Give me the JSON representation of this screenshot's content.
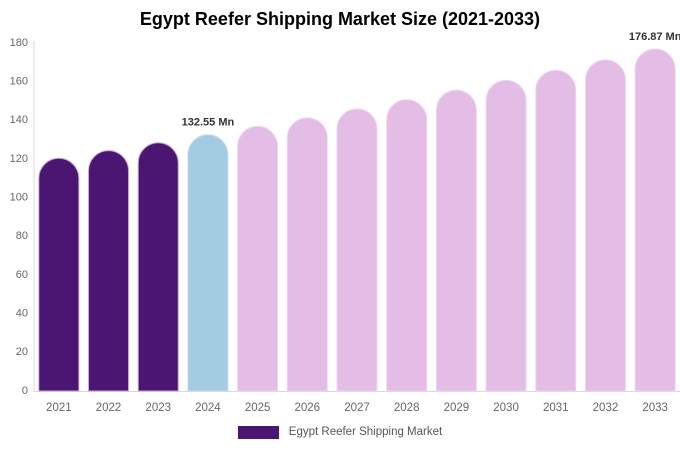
{
  "chart_data": {
    "type": "bar",
    "title": "Egypt Reefer Shipping Market Size (2021-2033)",
    "categories": [
      "2021",
      "2022",
      "2023",
      "2024",
      "2025",
      "2026",
      "2027",
      "2028",
      "2029",
      "2030",
      "2031",
      "2032",
      "2033"
    ],
    "values": [
      120.4,
      124.3,
      128.4,
      132.55,
      136.9,
      141.3,
      145.9,
      150.7,
      155.6,
      160.7,
      165.9,
      171.3,
      176.87
    ],
    "unit": "Mn",
    "xlabel": "",
    "ylabel": "",
    "ylim": [
      0,
      180
    ],
    "yticks": [
      0,
      20,
      40,
      60,
      80,
      100,
      120,
      140,
      160,
      180
    ],
    "grid": false,
    "legend": {
      "position": "bottom",
      "label": "Egypt Reefer Shipping Market",
      "swatch_color": "#4B1572"
    },
    "annotations": [
      {
        "index": 3,
        "text": "132.55 Mn"
      },
      {
        "index": 12,
        "text": "176.87 Mn"
      }
    ],
    "bar_colors": {
      "historical": "#4B1572",
      "base_year": "#A3CBE2",
      "forecast": "#E3BDE6"
    },
    "bar_strokes": {
      "historical": "#C9A5DA",
      "base_year": "#C6DEEC",
      "forecast": "#EFD6F1"
    },
    "bar_color_map": [
      "historical",
      "historical",
      "historical",
      "base_year",
      "forecast",
      "forecast",
      "forecast",
      "forecast",
      "forecast",
      "forecast",
      "forecast",
      "forecast",
      "forecast"
    ]
  },
  "colors": {
    "background": "#FFFFFF",
    "title": "#000000",
    "axis_line": "#D9D9D9",
    "tick_label": "#666666",
    "x_label": "#666666",
    "annotation": "#333333",
    "legend_text": "#555555"
  }
}
